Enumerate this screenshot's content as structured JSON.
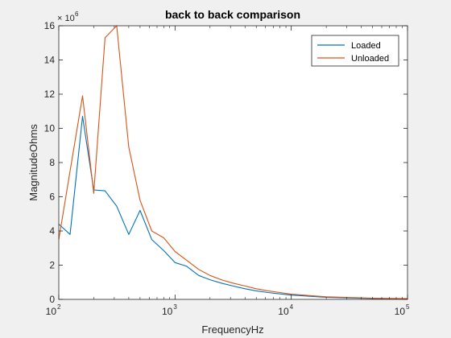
{
  "chart_data": {
    "type": "line",
    "title": "back to back comparison",
    "xlabel": "FrequencyHz",
    "ylabel": "MagnitudeOhms",
    "x_scale": "log",
    "xlim": [
      100,
      100000
    ],
    "ylim": [
      0,
      16
    ],
    "y_multiplier_label": "× 10",
    "y_multiplier_exponent": "6",
    "x_ticks": [
      {
        "base": "10",
        "exp": "2",
        "value": 100
      },
      {
        "base": "10",
        "exp": "3",
        "value": 1000
      },
      {
        "base": "10",
        "exp": "4",
        "value": 10000
      },
      {
        "base": "10",
        "exp": "5",
        "value": 100000
      }
    ],
    "y_ticks": [
      {
        "label": "0",
        "value": 0
      },
      {
        "label": "2",
        "value": 2
      },
      {
        "label": "4",
        "value": 4
      },
      {
        "label": "6",
        "value": 6
      },
      {
        "label": "8",
        "value": 8
      },
      {
        "label": "10",
        "value": 10
      },
      {
        "label": "12",
        "value": 12
      },
      {
        "label": "14",
        "value": 14
      },
      {
        "label": "16",
        "value": 16
      }
    ],
    "grid": false,
    "legend_position": "top-right",
    "series": [
      {
        "name": "Loaded",
        "color": "#0072bd",
        "x": [
          100,
          125,
          160,
          200,
          250,
          315,
          400,
          500,
          630,
          800,
          1000,
          1250,
          1600,
          2000,
          2500,
          3150,
          4000,
          5000,
          6300,
          8000,
          10000,
          20000,
          50000,
          100000
        ],
        "y": [
          4.4,
          3.8,
          10.7,
          6.4,
          6.35,
          5.45,
          3.8,
          5.2,
          3.5,
          2.85,
          2.15,
          1.95,
          1.4,
          1.15,
          0.95,
          0.78,
          0.62,
          0.5,
          0.4,
          0.32,
          0.25,
          0.12,
          0.05,
          0.03
        ]
      },
      {
        "name": "Unloaded",
        "color": "#d95319",
        "x": [
          100,
          125,
          160,
          200,
          250,
          315,
          400,
          500,
          630,
          800,
          1000,
          1250,
          1600,
          2000,
          2500,
          3150,
          4000,
          5000,
          6300,
          8000,
          10000,
          20000,
          50000,
          100000
        ],
        "y": [
          3.5,
          7.5,
          11.9,
          6.2,
          15.3,
          16.0,
          8.9,
          5.8,
          4.0,
          3.6,
          2.8,
          2.3,
          1.75,
          1.4,
          1.15,
          0.95,
          0.78,
          0.62,
          0.5,
          0.4,
          0.3,
          0.15,
          0.07,
          0.04
        ]
      }
    ]
  }
}
